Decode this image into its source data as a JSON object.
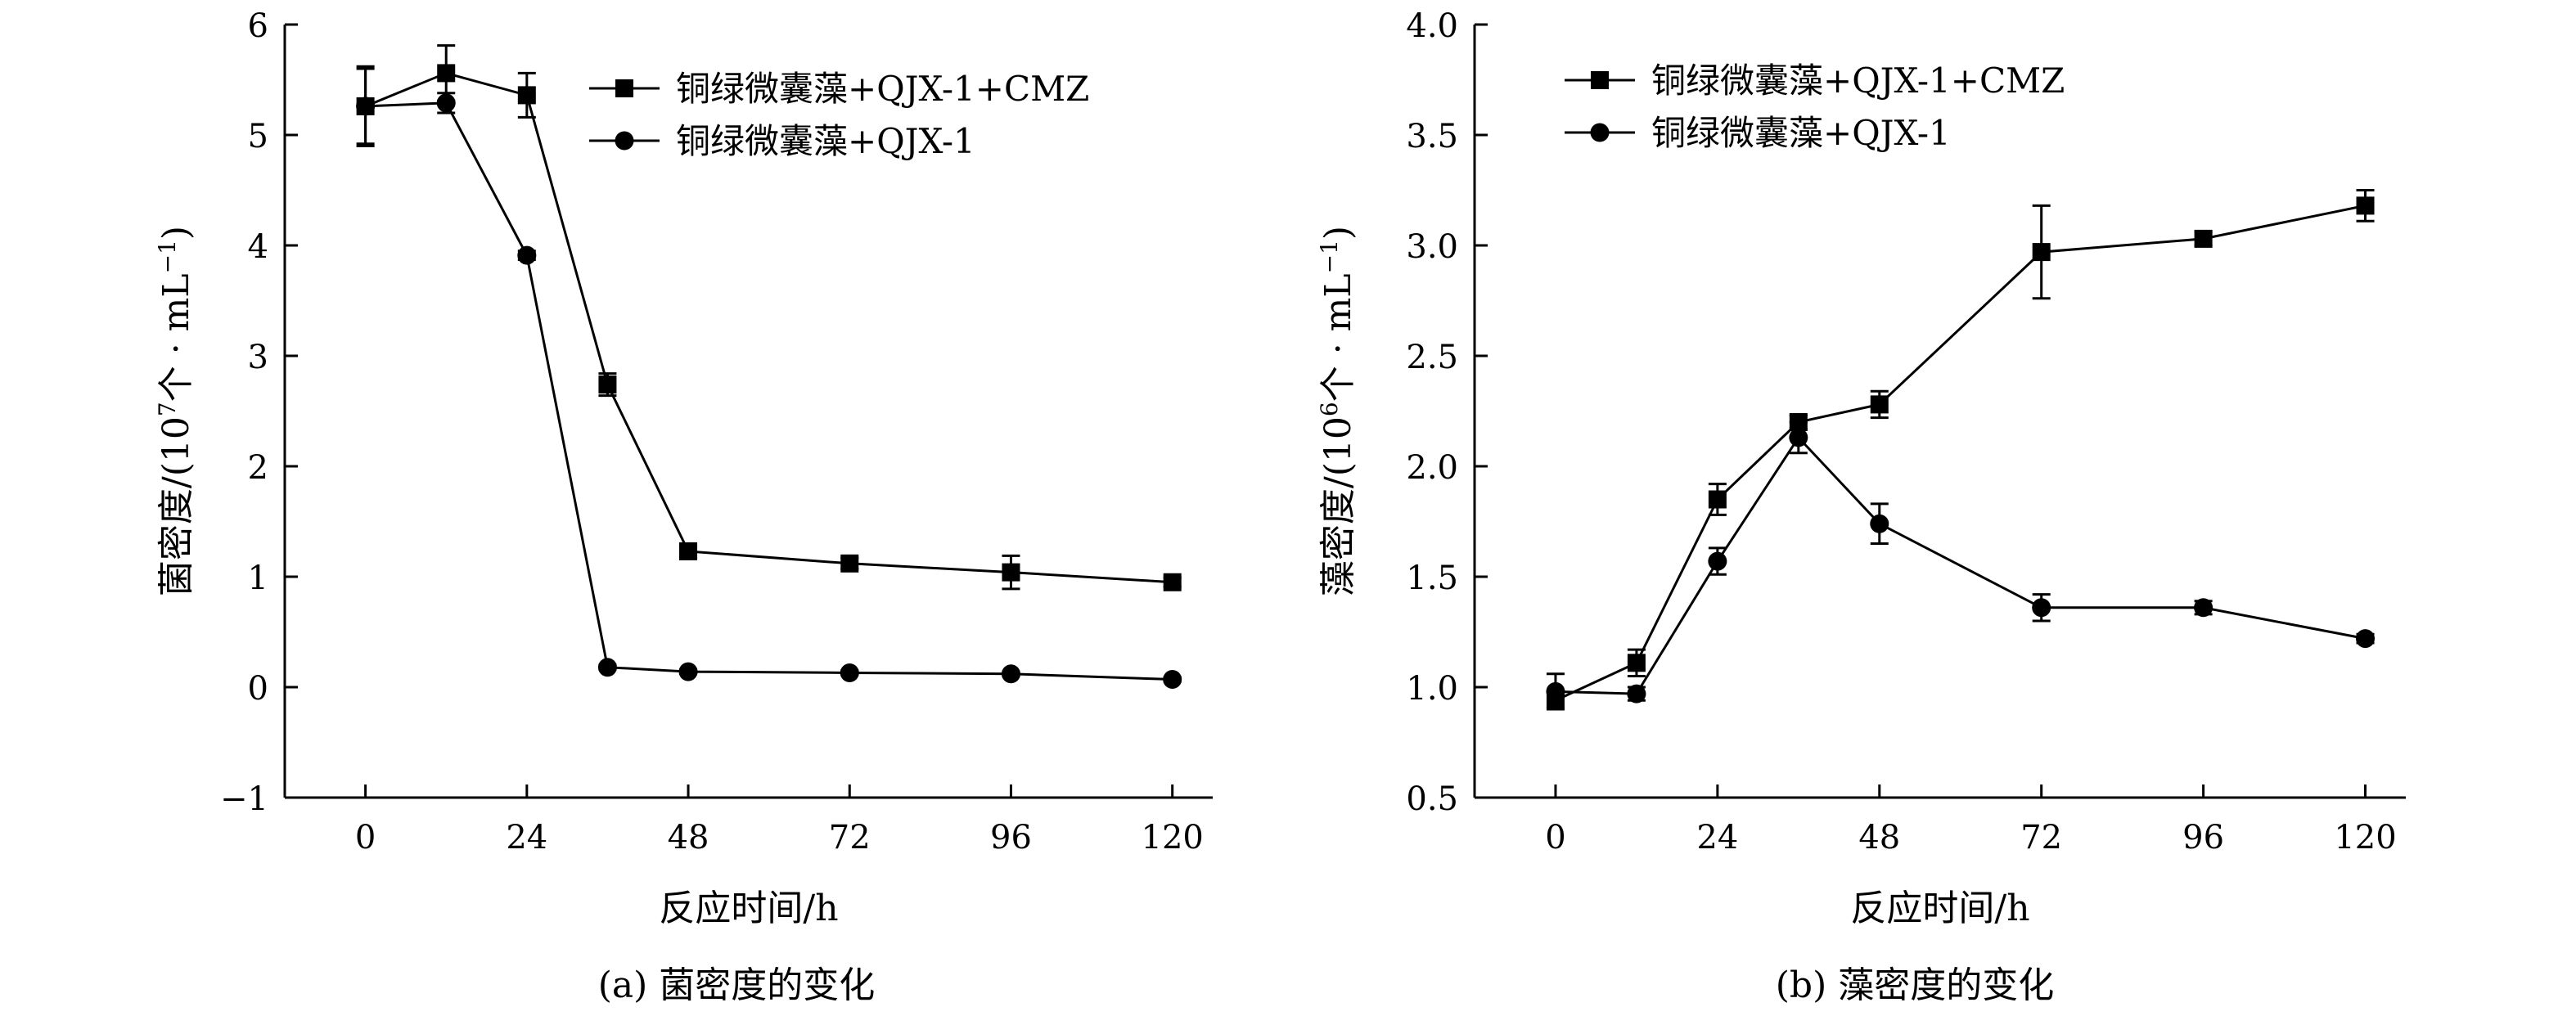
{
  "chart_data": [
    {
      "type": "line",
      "caption": "(a) 菌密度的变化",
      "xlabel": "反应时间/h",
      "ylabel": {
        "prefix": "菌密度/(10",
        "exp": "7",
        "mid": "个 · mL",
        "exp2": "−1",
        "suffix": ")"
      },
      "xlim": [
        -12,
        126
      ],
      "ylim": [
        -1,
        6
      ],
      "xticks": [
        0,
        24,
        48,
        72,
        96,
        120
      ],
      "yticks": [
        -1,
        0,
        1,
        2,
        3,
        4,
        5,
        6
      ],
      "ytick_labels": [
        "−1",
        "0",
        "1",
        "2",
        "3",
        "4",
        "5",
        "6"
      ],
      "legend_position": "top-right",
      "series": [
        {
          "name": "铜绿微囊藻+QJX-1+CMZ",
          "marker": "square",
          "x": [
            0,
            12,
            24,
            36,
            48,
            72,
            96,
            120
          ],
          "y": [
            5.26,
            5.56,
            5.36,
            2.74,
            1.23,
            1.12,
            1.04,
            0.95
          ],
          "err": [
            0.36,
            0.25,
            0.2,
            0.1,
            0.05,
            0.05,
            0.15,
            0.04
          ]
        },
        {
          "name": "铜绿微囊藻+QJX-1",
          "marker": "circle",
          "x": [
            0,
            12,
            24,
            36,
            48,
            72,
            96,
            120
          ],
          "y": [
            5.26,
            5.29,
            3.91,
            0.18,
            0.14,
            0.13,
            0.12,
            0.07
          ],
          "err": [
            0.34,
            0.09,
            0.04,
            0.02,
            0.02,
            0.02,
            0.02,
            0.02
          ]
        }
      ]
    },
    {
      "type": "line",
      "caption": "(b) 藻密度的变化",
      "xlabel": "反应时间/h",
      "ylabel": {
        "prefix": "藻密度/(10",
        "exp": "6",
        "mid": "个 · mL",
        "exp2": "−1",
        "suffix": ")"
      },
      "xlim": [
        -12,
        126
      ],
      "ylim": [
        0.5,
        4.0
      ],
      "xticks": [
        0,
        24,
        48,
        72,
        96,
        120
      ],
      "yticks": [
        0.5,
        1.0,
        1.5,
        2.0,
        2.5,
        3.0,
        3.5,
        4.0
      ],
      "ytick_labels": [
        "0.5",
        "1.0",
        "1.5",
        "2.0",
        "2.5",
        "3.0",
        "3.5",
        "4.0"
      ],
      "legend_position": "top-left",
      "series": [
        {
          "name": "铜绿微囊藻+QJX-1+CMZ",
          "marker": "square",
          "x": [
            0,
            12,
            24,
            36,
            48,
            72,
            96,
            120
          ],
          "y": [
            0.94,
            1.11,
            1.85,
            2.2,
            2.28,
            2.97,
            3.03,
            3.18
          ],
          "err": [
            0.03,
            0.06,
            0.07,
            0.03,
            0.06,
            0.21,
            0.03,
            0.07
          ]
        },
        {
          "name": "铜绿微囊藻+QJX-1",
          "marker": "circle",
          "x": [
            0,
            12,
            24,
            36,
            48,
            72,
            96,
            120
          ],
          "y": [
            0.98,
            0.97,
            1.57,
            2.13,
            1.74,
            1.36,
            1.36,
            1.22
          ],
          "err": [
            0.08,
            0.03,
            0.06,
            0.07,
            0.09,
            0.06,
            0.03,
            0.02
          ]
        }
      ]
    }
  ]
}
